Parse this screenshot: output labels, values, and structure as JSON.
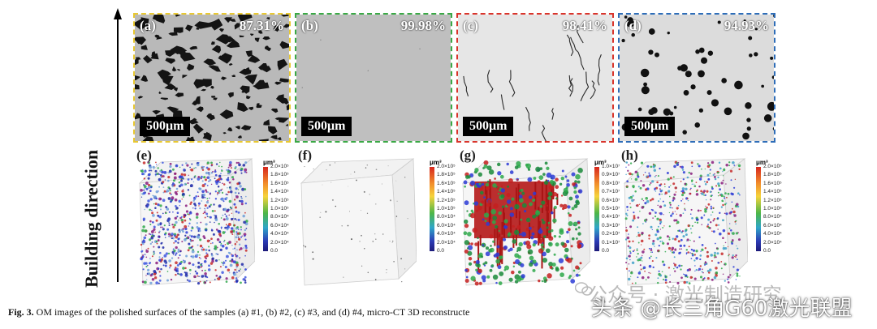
{
  "axis": {
    "label": "Building direction"
  },
  "om_panels": [
    {
      "label": "(a)",
      "density": "87.31%",
      "scale": "500μm",
      "border_color": "#e8c832"
    },
    {
      "label": "(b)",
      "density": "99.98%",
      "scale": "500μm",
      "border_color": "#3aa845"
    },
    {
      "label": "(c)",
      "density": "98.41%",
      "scale": "500μm",
      "border_color": "#d9342b"
    },
    {
      "label": "(d)",
      "density": "94.93%",
      "scale": "500μm",
      "border_color": "#2e6db8"
    }
  ],
  "ct_panels": [
    {
      "label": "(e)",
      "unit": "μm³",
      "ticks": [
        "2.0×10⁵",
        "1.8×10⁵",
        "1.6×10⁵",
        "1.4×10⁵",
        "1.2×10⁵",
        "1.0×10⁵",
        "8.0×10⁴",
        "6.0×10⁴",
        "4.0×10⁴",
        "2.0×10⁴",
        "0.0"
      ]
    },
    {
      "label": "(f)",
      "unit": "μm³",
      "ticks": [
        "2.0×10⁵",
        "1.8×10⁵",
        "1.6×10⁵",
        "1.4×10⁵",
        "1.2×10⁵",
        "1.0×10⁵",
        "8.0×10⁴",
        "6.0×10⁴",
        "4.0×10⁴",
        "2.0×10⁴",
        "0.0"
      ]
    },
    {
      "label": "(g)",
      "unit": "μm³",
      "ticks": [
        "1.0×10⁷",
        "0.9×10⁷",
        "0.8×10⁷",
        "0.7×10⁷",
        "0.6×10⁷",
        "0.5×10⁷",
        "0.4×10⁷",
        "0.3×10⁷",
        "0.2×10⁷",
        "0.1×10⁷",
        "0.0"
      ]
    },
    {
      "label": "(h)",
      "unit": "μm³",
      "ticks": [
        "2.0×10⁵",
        "1.8×10⁵",
        "1.6×10⁵",
        "1.4×10⁵",
        "1.2×10⁵",
        "1.0×10⁵",
        "8.0×10⁴",
        "6.0×10⁴",
        "4.0×10⁴",
        "2.0×10⁴",
        "0.0"
      ]
    }
  ],
  "caption": {
    "prefix": "Fig. 3.",
    "text": "OM images of the polished surfaces of the samples (a) #1, (b) #2, (c) #3, and (d) #4, micro-CT 3D reconstructe"
  },
  "watermarks": {
    "line1": "公众号 · 激光制造研究",
    "line2": "头条 @长三角G60激光联盟"
  }
}
